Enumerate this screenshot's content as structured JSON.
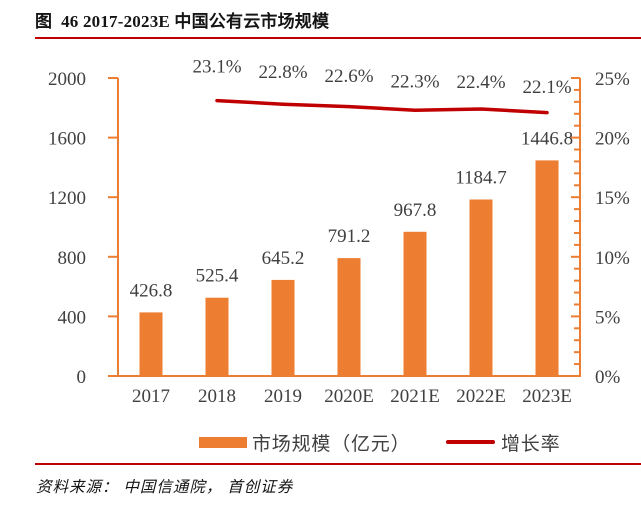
{
  "title": {
    "text": "图  46 2017-2023E 中国公有云市场规模"
  },
  "source": {
    "text": "资料来源： 中国信通院， 首创证券"
  },
  "legend": {
    "bar_label": "市场规模（亿元）",
    "line_label": "增长率"
  },
  "colors": {
    "bar": "#ED7D31",
    "line": "#C00000",
    "axis": "#ED7D31",
    "rule": "#C00000",
    "text": "#404040"
  },
  "chart_data": {
    "type": "bar",
    "title": "图 46 2017-2023E 中国公有云市场规模",
    "categories": [
      "2017",
      "2018",
      "2019",
      "2020E",
      "2021E",
      "2022E",
      "2023E"
    ],
    "series": [
      {
        "name": "市场规模（亿元）",
        "type": "bar",
        "axis": "left",
        "values": [
          426.8,
          525.4,
          645.2,
          791.2,
          967.8,
          1184.7,
          1446.8
        ],
        "labels": [
          "426.8",
          "525.4",
          "645.2",
          "791.2",
          "967.8",
          "1184.7",
          "1446.8"
        ]
      },
      {
        "name": "增长率",
        "type": "line",
        "axis": "right",
        "values": [
          null,
          23.1,
          22.8,
          22.6,
          22.3,
          22.4,
          22.1
        ],
        "labels": [
          "23.1%",
          "22.8%",
          "22.6%",
          "22.3%",
          "22.4%",
          "22.1%"
        ]
      }
    ],
    "left_axis": {
      "min": 0,
      "max": 2000,
      "step": 400,
      "ticks": [
        "0",
        "400",
        "800",
        "1200",
        "1600",
        "2000"
      ]
    },
    "right_axis": {
      "min": 0,
      "max": 25,
      "step": 5,
      "minor_step": 1,
      "ticks": [
        "0%",
        "5%",
        "10%",
        "15%",
        "20%",
        "25%"
      ]
    },
    "grid": false,
    "legend_position": "bottom"
  }
}
